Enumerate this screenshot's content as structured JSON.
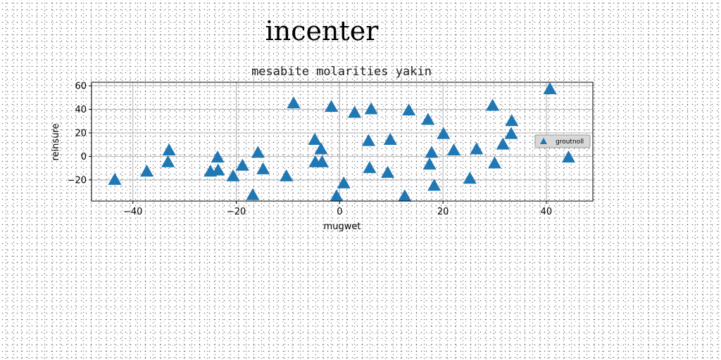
{
  "figure": {
    "suptitle": "incenter"
  },
  "chart_data": {
    "type": "scatter",
    "title": "mesabite molarities yakin",
    "xlabel": "mugwet",
    "ylabel": "reinsure",
    "xlim": [
      -48,
      49
    ],
    "ylim": [
      -38,
      63
    ],
    "xticks": [
      -40,
      -20,
      0,
      20,
      40
    ],
    "yticks": [
      -20,
      0,
      20,
      40,
      60
    ],
    "grid": true,
    "marker": "triangle-up",
    "legend": "center-right",
    "series": [
      {
        "name": "groutnoll",
        "color": "#1f77b4",
        "points": [
          [
            -43.5,
            -20
          ],
          [
            -37.3,
            -13
          ],
          [
            -33,
            5
          ],
          [
            -33.2,
            -5
          ],
          [
            -25,
            -13
          ],
          [
            -23.6,
            -1
          ],
          [
            -23.5,
            -12
          ],
          [
            -20.6,
            -17
          ],
          [
            -18.8,
            -8
          ],
          [
            -16.8,
            -33
          ],
          [
            -15.8,
            3
          ],
          [
            -14.8,
            -11
          ],
          [
            -10.3,
            -17
          ],
          [
            -8.9,
            45
          ],
          [
            -4.8,
            14
          ],
          [
            -4.7,
            -5
          ],
          [
            -3.6,
            6
          ],
          [
            -3.4,
            -5
          ],
          [
            -1.6,
            42
          ],
          [
            -0.6,
            -34
          ],
          [
            0.8,
            -23
          ],
          [
            2.9,
            37
          ],
          [
            5.6,
            13
          ],
          [
            5.8,
            -10
          ],
          [
            6.1,
            40
          ],
          [
            9.3,
            -14
          ],
          [
            9.8,
            14
          ],
          [
            12.6,
            -34
          ],
          [
            13.4,
            39
          ],
          [
            17.1,
            31
          ],
          [
            17.4,
            -7
          ],
          [
            17.8,
            3
          ],
          [
            18.3,
            -25
          ],
          [
            20.1,
            19
          ],
          [
            22.1,
            5
          ],
          [
            25.2,
            -19
          ],
          [
            26.5,
            6
          ],
          [
            29.6,
            43
          ],
          [
            30,
            -6
          ],
          [
            31.6,
            10
          ],
          [
            33.2,
            19
          ],
          [
            33.3,
            30
          ],
          [
            40.7,
            57
          ],
          [
            44.3,
            -1
          ]
        ]
      }
    ]
  }
}
